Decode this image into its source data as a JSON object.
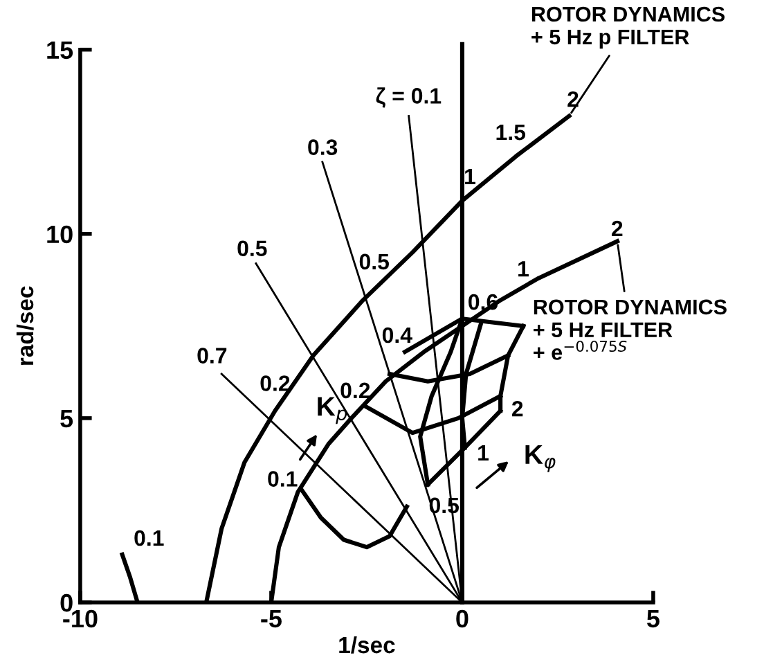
{
  "chart_data": {
    "type": "line",
    "xlabel": "1/sec",
    "ylabel": "rad/sec",
    "xlim": [
      -10,
      5
    ],
    "ylim": [
      0,
      15
    ],
    "xticks": [
      -10,
      -5,
      0,
      5
    ],
    "yticks": [
      0,
      5,
      10,
      15
    ],
    "grid": false,
    "legend": false,
    "marker": "none",
    "line_style": "solid",
    "ref_lines": [
      {
        "axis": "x",
        "value": 0,
        "label": null,
        "color": "#000000"
      }
    ],
    "series": [
      {
        "color": "#000000",
        "x": [
          -6.7,
          -6.3,
          -5.7,
          -4.9,
          -3.9,
          -2.6,
          -1.3,
          0,
          1.4,
          2.8
        ],
        "values": [
          0,
          2,
          3.8,
          5.2,
          6.7,
          8.2,
          9.5,
          10.9,
          12.1,
          13.2
        ]
      },
      {
        "color": "#000000",
        "x": [
          -5,
          -4.8,
          -4.3,
          -3.5,
          -2.9,
          -2,
          -1,
          0,
          1,
          2,
          4.06
        ],
        "values": [
          0,
          1.5,
          3,
          4.3,
          5,
          6,
          6.8,
          7.5,
          8.2,
          8.8,
          9.8
        ]
      },
      {
        "color": "#000000",
        "x": [
          -4.2,
          -3.7,
          -3.1,
          -2.5,
          -1.9,
          -1.45
        ],
        "values": [
          3.05,
          2.3,
          1.7,
          1.5,
          1.8,
          2.6
        ]
      },
      {
        "color": "#000000",
        "x": [
          -8.5,
          -8.7,
          -8.9
        ],
        "values": [
          0,
          0.7,
          1.3
        ]
      },
      {
        "color": "#000000",
        "x": [
          0,
          -1.4
        ],
        "values": [
          0,
          13.2
        ]
      },
      {
        "color": "#000000",
        "x": [
          0,
          -3.66
        ],
        "values": [
          0,
          11.95
        ]
      },
      {
        "color": "#000000",
        "x": [
          0,
          -5.4
        ],
        "values": [
          0,
          9.2
        ]
      },
      {
        "color": "#000000",
        "x": [
          0,
          -6.3
        ],
        "values": [
          0,
          6.2
        ]
      },
      {
        "color": "#000000",
        "x": [
          -0.9,
          0.07,
          1.0
        ],
        "values": [
          3.2,
          4.2,
          5.2
        ]
      },
      {
        "color": "#000000",
        "x": [
          -2.5,
          -1.3,
          -0.1,
          1.0
        ],
        "values": [
          5.3,
          4.6,
          5.0,
          5.6
        ]
      },
      {
        "color": "#000000",
        "x": [
          -1.9,
          -0.9,
          0.2,
          1.2
        ],
        "values": [
          6.2,
          6.0,
          6.2,
          6.7
        ]
      },
      {
        "color": "#000000",
        "x": [
          -1.5,
          0,
          1.6
        ],
        "values": [
          6.8,
          7.7,
          7.5
        ]
      },
      {
        "color": "#000000",
        "x": [
          -0.9,
          -1.1,
          -0.8,
          -0.3,
          0
        ],
        "values": [
          3.2,
          4.5,
          5.6,
          6.8,
          7.7
        ]
      },
      {
        "color": "#000000",
        "x": [
          0.07,
          0,
          0.1,
          0.5
        ],
        "values": [
          4.2,
          5.0,
          6.2,
          7.6
        ]
      },
      {
        "color": "#000000",
        "x": [
          1.0,
          1.0,
          1.2,
          1.6
        ],
        "values": [
          5.2,
          5.6,
          6.7,
          7.5
        ]
      }
    ],
    "annotations": [
      {
        "text": "ROTOR DYNAMICS\n+ 5 Hz p FILTER",
        "x": 2.8,
        "y": 13.2
      },
      {
        "text": "ROTOR DYNAMICS\n+ 5 Hz FILTER\n+ e$^{−0.075S}$",
        "x": 4.06,
        "y": 9.8
      },
      "ζ = 0.1",
      "0.3",
      "0.5",
      "0.7",
      "2",
      "1.5",
      "1",
      "0.5",
      "0.2",
      "2",
      "1",
      "0.6",
      "0.4",
      "0.2",
      "0.1",
      "0.1",
      "0.5",
      "1",
      "2",
      "K$_{p}$",
      "K$_{φ}$"
    ]
  }
}
